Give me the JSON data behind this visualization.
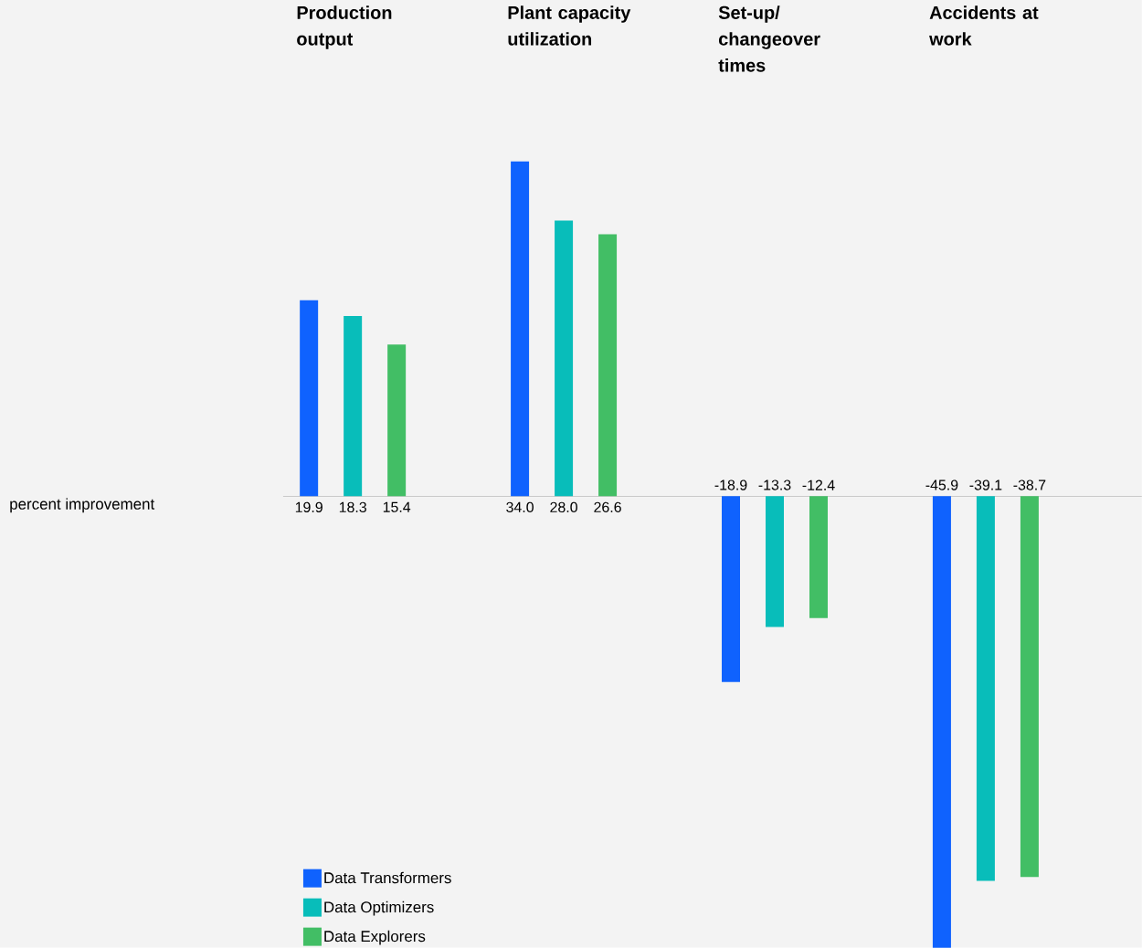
{
  "chart_data": {
    "type": "bar",
    "annotations": [
      "percent improvement"
    ],
    "categories": [
      "Production output",
      "Plant capacity utilization",
      "Set-up/ changeover times",
      "Accidents at work"
    ],
    "series": [
      {
        "name": "Data Transformers",
        "color": "#0f62fe",
        "values": [
          19.9,
          34.0,
          -18.9,
          -45.9
        ],
        "value_labels": [
          "19.9",
          "34.0",
          "-18.9",
          "-45.9"
        ]
      },
      {
        "name": "Data Optimizers",
        "color": "#08bdba",
        "values": [
          18.3,
          28.0,
          -13.3,
          -39.1
        ],
        "value_labels": [
          "18.3",
          "28.0",
          "-13.3",
          "-39.1"
        ]
      },
      {
        "name": "Data Explorers",
        "color": "#42be65",
        "values": [
          15.4,
          26.6,
          -12.4,
          -38.7
        ],
        "value_labels": [
          "15.4",
          "26.6",
          "-12.4",
          "-38.7"
        ]
      }
    ],
    "ylim": [
      -45.9,
      50.4
    ],
    "legend": "bottom left"
  }
}
